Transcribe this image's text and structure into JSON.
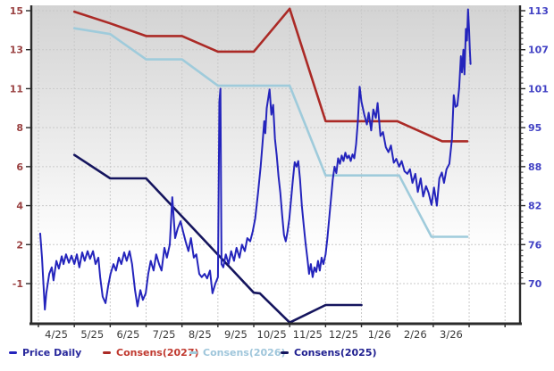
{
  "chart_data": {
    "type": "line",
    "title": "",
    "x_note": "x = months since 2025-04-01; price on right axis, consensus estimates on left axis",
    "x_axis": {
      "labels": [
        "4/25",
        "5/25",
        "6/25",
        "7/25",
        "8/25",
        "9/25",
        "10/25",
        "11/25",
        "12/25",
        "1/26",
        "2/26",
        "3/26"
      ],
      "color": "#3a3a3a"
    },
    "left_axis": {
      "ticks": [
        15,
        13,
        11,
        8,
        6,
        4,
        2,
        -1
      ],
      "color": "#994040"
    },
    "right_axis": {
      "ticks": [
        113,
        107,
        101,
        95,
        88,
        82,
        76,
        70
      ],
      "color": "#4141c4"
    },
    "grid_color": "#c9c9c9",
    "axis_frame_color": "#2a2a2a",
    "bg_gradient_top": "#d3d3d3",
    "bg_gradient_bottom": "#ffffff",
    "series": [
      {
        "name": "Price Daily",
        "axis": "right",
        "color": "#2424bc",
        "text_color": "#28289c",
        "points": [
          [
            0.05,
            77.7
          ],
          [
            0.1,
            74
          ],
          [
            0.14,
            70
          ],
          [
            0.18,
            66
          ],
          [
            0.22,
            68.5
          ],
          [
            0.3,
            71.5
          ],
          [
            0.37,
            72.5
          ],
          [
            0.42,
            70.5
          ],
          [
            0.5,
            73.5
          ],
          [
            0.57,
            72.3
          ],
          [
            0.65,
            74.2
          ],
          [
            0.7,
            73
          ],
          [
            0.77,
            74.5
          ],
          [
            0.85,
            73.2
          ],
          [
            0.92,
            74.3
          ],
          [
            1.0,
            73
          ],
          [
            1.07,
            74.5
          ],
          [
            1.14,
            72.5
          ],
          [
            1.22,
            74.8
          ],
          [
            1.29,
            73.5
          ],
          [
            1.37,
            75
          ],
          [
            1.44,
            73.8
          ],
          [
            1.52,
            75
          ],
          [
            1.59,
            73
          ],
          [
            1.67,
            74
          ],
          [
            1.72,
            71
          ],
          [
            1.79,
            68
          ],
          [
            1.87,
            67
          ],
          [
            1.94,
            69.5
          ],
          [
            2.01,
            71.5
          ],
          [
            2.09,
            73
          ],
          [
            2.16,
            72
          ],
          [
            2.24,
            74
          ],
          [
            2.31,
            73
          ],
          [
            2.39,
            74.8
          ],
          [
            2.46,
            73.5
          ],
          [
            2.54,
            75
          ],
          [
            2.61,
            73
          ],
          [
            2.69,
            69
          ],
          [
            2.76,
            66.5
          ],
          [
            2.84,
            69
          ],
          [
            2.91,
            67.5
          ],
          [
            2.99,
            68.5
          ],
          [
            3.06,
            71.5
          ],
          [
            3.13,
            73.5
          ],
          [
            3.21,
            72
          ],
          [
            3.28,
            74.5
          ],
          [
            3.36,
            73
          ],
          [
            3.43,
            72
          ],
          [
            3.51,
            75.5
          ],
          [
            3.58,
            74
          ],
          [
            3.66,
            76
          ],
          [
            3.73,
            83.3
          ],
          [
            3.81,
            77
          ],
          [
            3.88,
            78.5
          ],
          [
            3.96,
            79.6
          ],
          [
            4.03,
            78
          ],
          [
            4.1,
            76.5
          ],
          [
            4.18,
            75
          ],
          [
            4.25,
            77
          ],
          [
            4.33,
            74
          ],
          [
            4.4,
            74.5
          ],
          [
            4.48,
            71.5
          ],
          [
            4.55,
            71
          ],
          [
            4.63,
            71.5
          ],
          [
            4.7,
            70.8
          ],
          [
            4.78,
            72
          ],
          [
            4.85,
            68.5
          ],
          [
            4.93,
            70
          ],
          [
            5.0,
            71
          ],
          [
            5.04,
            99
          ],
          [
            5.07,
            101
          ],
          [
            5.1,
            73
          ],
          [
            5.15,
            72.5
          ],
          [
            5.22,
            74.5
          ],
          [
            5.3,
            73
          ],
          [
            5.37,
            75
          ],
          [
            5.45,
            73.5
          ],
          [
            5.52,
            75.5
          ],
          [
            5.6,
            74
          ],
          [
            5.67,
            76
          ],
          [
            5.75,
            75
          ],
          [
            5.82,
            77
          ],
          [
            5.9,
            76.5
          ],
          [
            5.97,
            78
          ],
          [
            6.04,
            80
          ],
          [
            6.12,
            84
          ],
          [
            6.19,
            88
          ],
          [
            6.24,
            92
          ],
          [
            6.29,
            96
          ],
          [
            6.32,
            94
          ],
          [
            6.36,
            98
          ],
          [
            6.44,
            100.9
          ],
          [
            6.49,
            97
          ],
          [
            6.54,
            98.5
          ],
          [
            6.59,
            93
          ],
          [
            6.64,
            90
          ],
          [
            6.69,
            86.5
          ],
          [
            6.74,
            84
          ],
          [
            6.79,
            80.5
          ],
          [
            6.84,
            77.5
          ],
          [
            6.89,
            76.5
          ],
          [
            6.94,
            78
          ],
          [
            6.99,
            80
          ],
          [
            7.04,
            83
          ],
          [
            7.09,
            86
          ],
          [
            7.14,
            88.8
          ],
          [
            7.19,
            88
          ],
          [
            7.24,
            89
          ],
          [
            7.29,
            86
          ],
          [
            7.34,
            82
          ],
          [
            7.39,
            79
          ],
          [
            7.44,
            76.3
          ],
          [
            7.49,
            74
          ],
          [
            7.54,
            71.5
          ],
          [
            7.59,
            73
          ],
          [
            7.64,
            71
          ],
          [
            7.69,
            72.5
          ],
          [
            7.74,
            71.8
          ],
          [
            7.79,
            73.5
          ],
          [
            7.84,
            72
          ],
          [
            7.89,
            74
          ],
          [
            7.94,
            73
          ],
          [
            8.0,
            74.5
          ],
          [
            8.05,
            77
          ],
          [
            8.1,
            80
          ],
          [
            8.15,
            83
          ],
          [
            8.2,
            86
          ],
          [
            8.25,
            88
          ],
          [
            8.3,
            87
          ],
          [
            8.35,
            89.5
          ],
          [
            8.4,
            88.5
          ],
          [
            8.45,
            90
          ],
          [
            8.5,
            89
          ],
          [
            8.55,
            90.5
          ],
          [
            8.6,
            89.5
          ],
          [
            8.65,
            90
          ],
          [
            8.7,
            89
          ],
          [
            8.75,
            90.2
          ],
          [
            8.8,
            89.5
          ],
          [
            8.85,
            92
          ],
          [
            8.9,
            96
          ],
          [
            8.95,
            101.3
          ],
          [
            9.0,
            99
          ],
          [
            9.08,
            97
          ],
          [
            9.15,
            95.5
          ],
          [
            9.2,
            97.3
          ],
          [
            9.27,
            94.5
          ],
          [
            9.33,
            97.8
          ],
          [
            9.4,
            96.5
          ],
          [
            9.45,
            98.8
          ],
          [
            9.53,
            93.5
          ],
          [
            9.6,
            94.2
          ],
          [
            9.68,
            91.5
          ],
          [
            9.75,
            90.6
          ],
          [
            9.82,
            91.8
          ],
          [
            9.9,
            88.7
          ],
          [
            9.97,
            89.4
          ],
          [
            10.05,
            88
          ],
          [
            10.12,
            89
          ],
          [
            10.2,
            87.3
          ],
          [
            10.28,
            86.9
          ],
          [
            10.35,
            87.6
          ],
          [
            10.42,
            85.5
          ],
          [
            10.5,
            86.9
          ],
          [
            10.57,
            84.1
          ],
          [
            10.65,
            86.2
          ],
          [
            10.72,
            83.4
          ],
          [
            10.8,
            85
          ],
          [
            10.87,
            84
          ],
          [
            10.95,
            82.1
          ],
          [
            11.02,
            84.8
          ],
          [
            11.1,
            82
          ],
          [
            11.17,
            86.2
          ],
          [
            11.24,
            87.1
          ],
          [
            11.3,
            85.5
          ],
          [
            11.37,
            87.6
          ],
          [
            11.45,
            88.5
          ],
          [
            11.52,
            93
          ],
          [
            11.57,
            100
          ],
          [
            11.62,
            98.2
          ],
          [
            11.67,
            98.4
          ],
          [
            11.72,
            101
          ],
          [
            11.77,
            106
          ],
          [
            11.8,
            103.5
          ],
          [
            11.84,
            107
          ],
          [
            11.87,
            103.2
          ],
          [
            11.91,
            110.2
          ],
          [
            11.94,
            108.4
          ],
          [
            11.97,
            113.2
          ],
          [
            12.0,
            110
          ],
          [
            12.02,
            107
          ],
          [
            12.04,
            104.8
          ]
        ]
      },
      {
        "name": "Consens(2027)",
        "axis": "left",
        "color": "#ab2a26",
        "text_color": "#c0392f",
        "points": [
          [
            1.0,
            14.95
          ],
          [
            2.0,
            14.35
          ],
          [
            3.0,
            13.7
          ],
          [
            4.0,
            13.7
          ],
          [
            5.0,
            12.9
          ],
          [
            6.0,
            12.9
          ],
          [
            7.0,
            15.1
          ],
          [
            8.0,
            8.5
          ],
          [
            10.0,
            8.5
          ],
          [
            11.25,
            7.3
          ],
          [
            11.95,
            7.3
          ]
        ]
      },
      {
        "name": "Consens(2026)",
        "axis": "left",
        "color": "#9fcbdb",
        "text_color": "#9fc6db",
        "points": [
          [
            1.0,
            14.1
          ],
          [
            2.0,
            13.8
          ],
          [
            3.0,
            12.5
          ],
          [
            4.0,
            12.5
          ],
          [
            5.0,
            11.15
          ],
          [
            7.0,
            11.15
          ],
          [
            8.0,
            5.55
          ],
          [
            10.05,
            5.55
          ],
          [
            10.95,
            2.4
          ],
          [
            11.95,
            2.4
          ]
        ]
      },
      {
        "name": "Consens(2025)",
        "axis": "left",
        "color": "#15155e",
        "text_color": "#1e1e8f",
        "points": [
          [
            1.0,
            6.6
          ],
          [
            2.0,
            5.4
          ],
          [
            3.0,
            5.4
          ],
          [
            6.0,
            -1.7
          ],
          [
            6.17,
            -1.75
          ],
          [
            7.0,
            -4.0
          ],
          [
            8.0,
            -2.65
          ],
          [
            9.0,
            -2.65
          ]
        ]
      }
    ],
    "legend_order": [
      0,
      1,
      2,
      3
    ]
  }
}
